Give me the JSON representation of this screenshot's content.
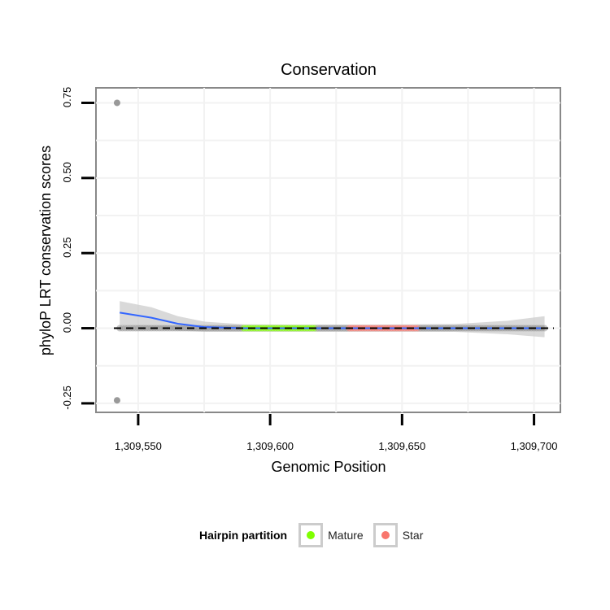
{
  "chart_data": {
    "type": "scatter",
    "title": "Conservation",
    "xlabel": "Genomic Position",
    "ylabel": "phyloP LRT conservation scores",
    "xlim": [
      1309534,
      1309710
    ],
    "ylim": [
      -0.28,
      0.8
    ],
    "x_ticks": [
      1309550,
      1309600,
      1309650,
      1309700
    ],
    "x_tick_labels": [
      "1,309,550",
      "1,309,600",
      "1,309,650",
      "1,309,700"
    ],
    "y_ticks": [
      -0.25,
      0,
      0.25,
      0.5,
      0.75
    ],
    "y_tick_labels": [
      "-0.25",
      "0.00",
      "0.25",
      "0.50",
      "0.75"
    ],
    "grid": true,
    "reference_line": {
      "y": 0,
      "style": "dashed"
    },
    "regions": [
      {
        "name": "Mature",
        "x_start": 1309590,
        "x_end": 1309617,
        "color": "#7fff00"
      },
      {
        "name": "Star",
        "x_start": 1309630,
        "x_end": 1309656,
        "color": "#f8766d"
      }
    ],
    "outlier_points": [
      {
        "x": 1309542,
        "y": 0.75
      },
      {
        "x": 1309542,
        "y": -0.24
      }
    ],
    "baseline_points": {
      "x_start": 1309543,
      "x_end": 1309704,
      "y": 0
    },
    "smooth_line": {
      "x": [
        1309543,
        1309555,
        1309565,
        1309575,
        1309590,
        1309610,
        1309640,
        1309670,
        1309690,
        1309704
      ],
      "y": [
        0.052,
        0.035,
        0.015,
        0.004,
        0.0,
        0.0,
        0.0,
        0.0,
        0.0,
        0.0
      ],
      "ci_upper": [
        0.09,
        0.07,
        0.04,
        0.022,
        0.013,
        0.012,
        0.012,
        0.014,
        0.025,
        0.04
      ],
      "ci_lower": [
        0.01,
        0.005,
        -0.008,
        -0.012,
        -0.012,
        -0.012,
        -0.012,
        -0.012,
        -0.02,
        -0.03
      ],
      "color": "#3366ff",
      "ci_color": "#cccccc"
    },
    "legend": {
      "title": "Hairpin partition",
      "position": "bottom",
      "entries": [
        {
          "label": "Mature",
          "color": "#7fff00"
        },
        {
          "label": "Star",
          "color": "#f8766d"
        }
      ]
    }
  }
}
